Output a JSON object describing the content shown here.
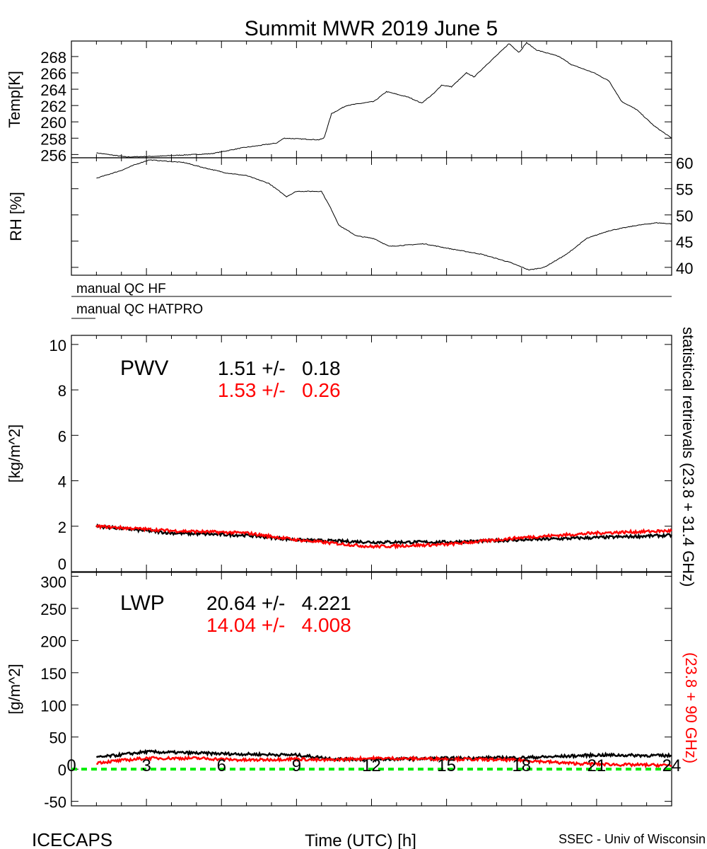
{
  "title": "Summit MWR 2019 June  5",
  "footer": {
    "left": "ICECAPS",
    "center": "Time (UTC) [h]",
    "right": "SSEC - Univ of Wisconsin"
  },
  "qc": {
    "hf_label": "manual QC HF",
    "hatpro_label": "manual QC HATPRO"
  },
  "right_label": {
    "black": "statistical retrievals (23.8 + 31.4 GHz)",
    "red": "(23.8 + 90 GHz)"
  },
  "colors": {
    "series_black": "#000000",
    "series_red": "#ff0000",
    "zero_line": "#00ee00"
  },
  "chart_data": [
    {
      "type": "line",
      "name": "temp",
      "ylabel": "Temp[K]",
      "xlim": [
        0,
        24
      ],
      "ylim": [
        255.6,
        269.9
      ],
      "yticks": [
        256,
        258,
        260,
        262,
        264,
        266,
        268
      ],
      "series": [
        {
          "color": "#000000",
          "points": [
            [
              1,
              256.2
            ],
            [
              2.2,
              255.7
            ],
            [
              3.5,
              255.8
            ],
            [
              5.6,
              256.1
            ],
            [
              6.8,
              256.8
            ],
            [
              8.2,
              257.4
            ],
            [
              8.5,
              258
            ],
            [
              9.9,
              257.8
            ],
            [
              10.1,
              258
            ],
            [
              10.4,
              261
            ],
            [
              11,
              262
            ],
            [
              12.1,
              262.5
            ],
            [
              12.6,
              263.7
            ],
            [
              13.5,
              263
            ],
            [
              14,
              262.3
            ],
            [
              14.5,
              263.5
            ],
            [
              14.8,
              264.5
            ],
            [
              15.2,
              264.3
            ],
            [
              15.8,
              266
            ],
            [
              16.1,
              265.5
            ],
            [
              16.6,
              267
            ],
            [
              17.2,
              268.7
            ],
            [
              17.5,
              269.6
            ],
            [
              17.9,
              268.5
            ],
            [
              18.2,
              269.7
            ],
            [
              18.6,
              268.8
            ],
            [
              19.5,
              268
            ],
            [
              20,
              267
            ],
            [
              20.9,
              266
            ],
            [
              21.5,
              265
            ],
            [
              22,
              262.5
            ],
            [
              22.6,
              261.5
            ],
            [
              23.3,
              259.5
            ],
            [
              24,
              258
            ]
          ]
        }
      ]
    },
    {
      "type": "line",
      "name": "rh",
      "ylabel": "RH [%]",
      "xlim": [
        0,
        24
      ],
      "ylim": [
        38.5,
        60.9
      ],
      "yticks": [
        40,
        45,
        50,
        55,
        60
      ],
      "series": [
        {
          "color": "#000000",
          "points": [
            [
              1,
              57
            ],
            [
              2,
              58.5
            ],
            [
              2.5,
              59.5
            ],
            [
              3.1,
              60.5
            ],
            [
              4.5,
              60
            ],
            [
              5.3,
              59
            ],
            [
              6.2,
              58
            ],
            [
              7,
              57.5
            ],
            [
              7.9,
              56
            ],
            [
              8.6,
              53.5
            ],
            [
              9,
              54.5
            ],
            [
              10,
              54.5
            ],
            [
              10.4,
              51
            ],
            [
              10.7,
              48
            ],
            [
              11.4,
              46
            ],
            [
              12.1,
              45.5
            ],
            [
              12.7,
              44
            ],
            [
              14.1,
              44.5
            ],
            [
              15.2,
              43.5
            ],
            [
              16.4,
              42.5
            ],
            [
              17.5,
              41
            ],
            [
              18.3,
              39.5
            ],
            [
              18.9,
              40
            ],
            [
              19.8,
              42.5
            ],
            [
              20.6,
              45.5
            ],
            [
              21.5,
              47
            ],
            [
              22.6,
              48
            ],
            [
              23.4,
              48.5
            ],
            [
              24,
              48.3
            ]
          ]
        }
      ]
    },
    {
      "type": "line",
      "name": "pwv",
      "label": "PWV",
      "ylabel": "[kg/m^2]",
      "xlim": [
        0,
        24
      ],
      "ylim": [
        0,
        10.4
      ],
      "yticks": [
        0,
        2,
        4,
        6,
        8,
        10
      ],
      "stats": [
        {
          "text": "1.51 +/-   0.18",
          "color": "#000000"
        },
        {
          "text": "1.53 +/-   0.26",
          "color": "#ff0000"
        }
      ],
      "series": [
        {
          "color": "#000000",
          "points": [
            [
              1,
              2.0
            ],
            [
              4,
              1.7
            ],
            [
              7,
              1.6
            ],
            [
              9,
              1.4
            ],
            [
              12,
              1.3
            ],
            [
              15,
              1.3
            ],
            [
              18,
              1.4
            ],
            [
              21,
              1.5
            ],
            [
              24,
              1.6
            ]
          ]
        },
        {
          "color": "#ff0000",
          "points": [
            [
              1,
              2.0
            ],
            [
              4,
              1.8
            ],
            [
              7,
              1.7
            ],
            [
              9,
              1.4
            ],
            [
              12,
              1.1
            ],
            [
              15,
              1.2
            ],
            [
              18,
              1.5
            ],
            [
              21,
              1.7
            ],
            [
              24,
              1.8
            ]
          ]
        }
      ]
    },
    {
      "type": "line",
      "name": "lwp",
      "label": "LWP",
      "ylabel": "[g/m^2]",
      "xlabel": "Time (UTC) [h]",
      "xlim": [
        0,
        24
      ],
      "ylim": [
        -57,
        306
      ],
      "yticks": [
        -50,
        0,
        50,
        100,
        150,
        200,
        250,
        300
      ],
      "xticks": [
        0,
        3,
        6,
        9,
        12,
        15,
        18,
        21,
        24
      ],
      "stats": [
        {
          "text": "20.64 +/-   4.221",
          "color": "#000000"
        },
        {
          "text": "14.04 +/-   4.008",
          "color": "#ff0000"
        }
      ],
      "zero_line": 0,
      "series": [
        {
          "color": "#000000",
          "points": [
            [
              1,
              18
            ],
            [
              3,
              27
            ],
            [
              6,
              24
            ],
            [
              9,
              22
            ],
            [
              10.5,
              16
            ],
            [
              12,
              15
            ],
            [
              15,
              17
            ],
            [
              18,
              18
            ],
            [
              19,
              19
            ],
            [
              21,
              22
            ],
            [
              24,
              21
            ]
          ]
        },
        {
          "color": "#ff0000",
          "points": [
            [
              1,
              10
            ],
            [
              3,
              17
            ],
            [
              5,
              17
            ],
            [
              7,
              14
            ],
            [
              9,
              16
            ],
            [
              10,
              14
            ],
            [
              12,
              17
            ],
            [
              15,
              16
            ],
            [
              18,
              14
            ],
            [
              20,
              9
            ],
            [
              22,
              7
            ],
            [
              24,
              6
            ]
          ]
        }
      ]
    }
  ]
}
